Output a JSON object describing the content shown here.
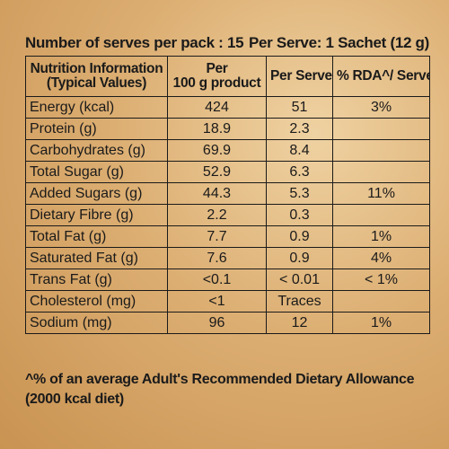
{
  "header": {
    "serves_per_pack": "Number of serves per pack : 15",
    "per_serve": "Per Serve: 1 Sachet (12 g)"
  },
  "table": {
    "headers": {
      "col1_line1": "Nutrition Information",
      "col1_line2": "(Typical Values)",
      "col2_line1": "Per",
      "col2_line2": "100 g product",
      "col3": "Per Serve",
      "col4": "% RDA^/ Serve"
    },
    "rows": [
      {
        "label": "Energy (kcal)",
        "per100": "424",
        "per_serve": "51",
        "rda": "3%"
      },
      {
        "label": "Protein (g)",
        "per100": "18.9",
        "per_serve": "2.3",
        "rda": ""
      },
      {
        "label": "Carbohydrates (g)",
        "per100": "69.9",
        "per_serve": "8.4",
        "rda": ""
      },
      {
        "label": "Total Sugar (g)",
        "per100": "52.9",
        "per_serve": "6.3",
        "rda": ""
      },
      {
        "label": "Added Sugars (g)",
        "per100": "44.3",
        "per_serve": "5.3",
        "rda": "11%"
      },
      {
        "label": "Dietary Fibre (g)",
        "per100": "2.2",
        "per_serve": "0.3",
        "rda": ""
      },
      {
        "label": "Total Fat (g)",
        "per100": "7.7",
        "per_serve": "0.9",
        "rda": "1%"
      },
      {
        "label": "Saturated Fat (g)",
        "per100": "7.6",
        "per_serve": "0.9",
        "rda": "4%"
      },
      {
        "label": "Trans Fat (g)",
        "per100": "<0.1",
        "per_serve": "< 0.01",
        "rda": "< 1%"
      },
      {
        "label": "Cholesterol (mg)",
        "per100": "<1",
        "per_serve": "Traces",
        "rda": ""
      },
      {
        "label": "Sodium (mg)",
        "per100": "96",
        "per_serve": "12",
        "rda": "1%"
      }
    ]
  },
  "footnote": {
    "line1": "^% of an average Adult's Recommended Dietary Allowance",
    "line2": "(2000 kcal diet)"
  }
}
